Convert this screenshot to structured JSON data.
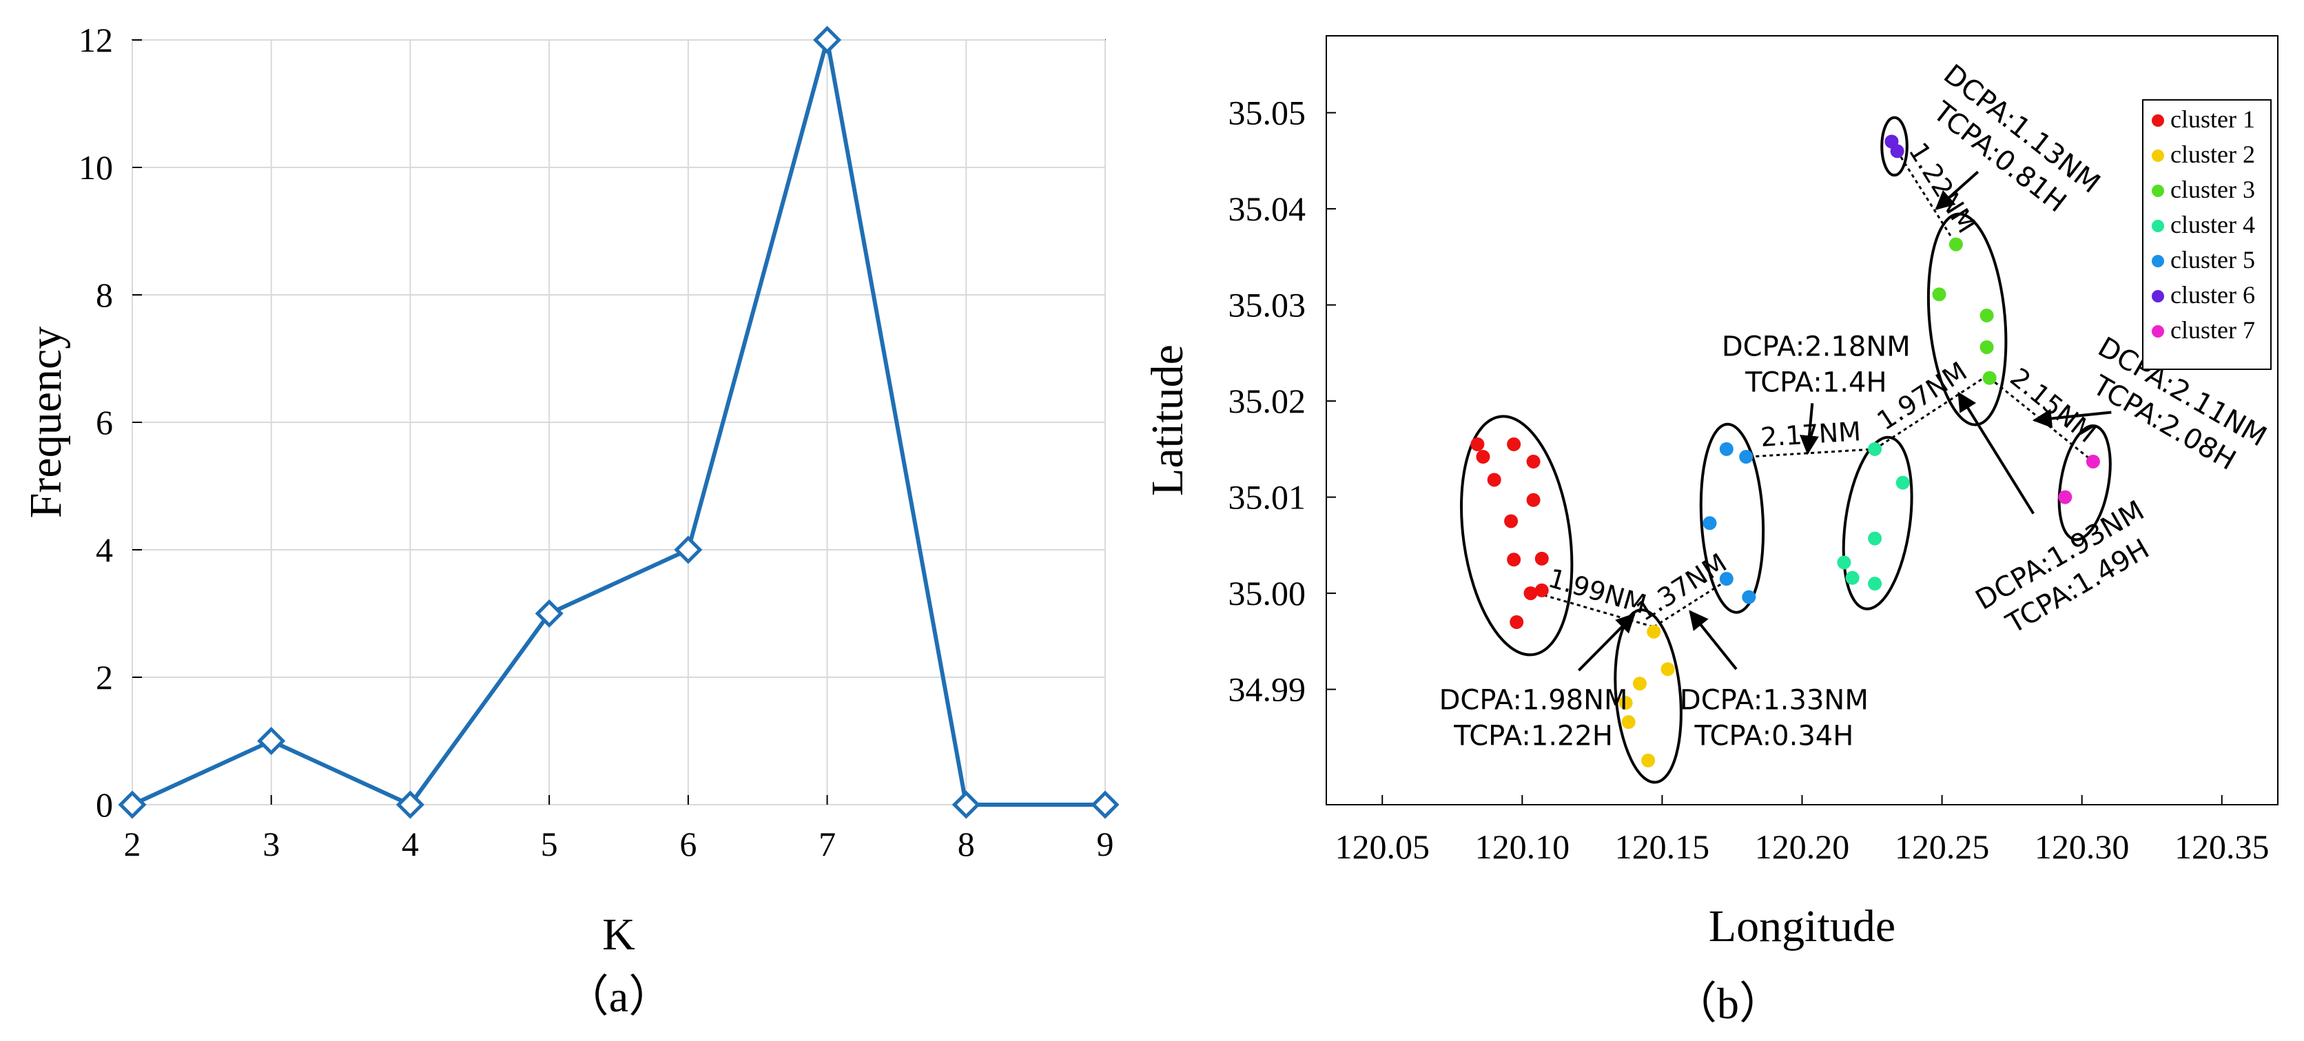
{
  "chart_data": [
    {
      "type": "line",
      "caption": "（a）",
      "xlabel": "K",
      "ylabel": "Frequency",
      "xlim": [
        2,
        9
      ],
      "ylim": [
        0,
        12
      ],
      "xticks": [
        2,
        3,
        4,
        5,
        6,
        7,
        8,
        9
      ],
      "yticks": [
        0,
        2,
        4,
        6,
        8,
        10,
        12
      ],
      "grid": true,
      "marker": "diamond",
      "color": "#1f6fb4",
      "x": [
        2,
        3,
        4,
        5,
        6,
        7,
        8,
        9
      ],
      "y": [
        0,
        1,
        0,
        3,
        4,
        12,
        0,
        0
      ]
    },
    {
      "type": "scatter",
      "caption": "（b）",
      "xlabel": "Longitude",
      "ylabel": "Latitude",
      "xlim": [
        120.03,
        120.37
      ],
      "ylim": [
        34.978,
        35.058
      ],
      "xticks": [
        "120.05",
        "120.10",
        "120.15",
        "120.20",
        "120.25",
        "120.30",
        "120.35"
      ],
      "yticks": [
        "34.99",
        "35.00",
        "35.01",
        "35.02",
        "35.03",
        "35.04",
        "35.05"
      ],
      "grid": false,
      "legend_position": "top-right",
      "series": [
        {
          "name": "cluster 1",
          "color": "#ee1111",
          "points": [
            [
              120.084,
              35.0155
            ],
            [
              120.086,
              35.0142
            ],
            [
              120.097,
              35.0155
            ],
            [
              120.104,
              35.0137
            ],
            [
              120.09,
              35.0118
            ],
            [
              120.104,
              35.0097
            ],
            [
              120.096,
              35.0075
            ],
            [
              120.097,
              35.0035
            ],
            [
              120.107,
              35.0036
            ],
            [
              120.103,
              35.0
            ],
            [
              120.107,
              35.0003
            ],
            [
              120.098,
              34.997
            ]
          ]
        },
        {
          "name": "cluster 2",
          "color": "#f5cc00",
          "points": [
            [
              120.147,
              34.996
            ],
            [
              120.152,
              34.9921
            ],
            [
              120.142,
              34.9906
            ],
            [
              120.137,
              34.9886
            ],
            [
              120.138,
              34.9866
            ],
            [
              120.145,
              34.9826
            ]
          ]
        },
        {
          "name": "cluster 3",
          "color": "#55dd22",
          "points": [
            [
              120.255,
              35.0363
            ],
            [
              120.249,
              35.0311
            ],
            [
              120.266,
              35.0289
            ],
            [
              120.266,
              35.0256
            ],
            [
              120.267,
              35.0224
            ]
          ]
        },
        {
          "name": "cluster 4",
          "color": "#22e899",
          "points": [
            [
              120.226,
              35.015
            ],
            [
              120.236,
              35.0115
            ],
            [
              120.226,
              35.0057
            ],
            [
              120.215,
              35.0032
            ],
            [
              120.218,
              35.0016
            ],
            [
              120.226,
              35.001
            ]
          ]
        },
        {
          "name": "cluster 5",
          "color": "#1a90e8",
          "points": [
            [
              120.173,
              35.015
            ],
            [
              120.18,
              35.0142
            ],
            [
              120.167,
              35.0073
            ],
            [
              120.173,
              35.0015
            ],
            [
              120.181,
              34.9996
            ]
          ]
        },
        {
          "name": "cluster 6",
          "color": "#6622dd",
          "points": [
            [
              120.232,
              35.047
            ],
            [
              120.234,
              35.046
            ]
          ]
        },
        {
          "name": "cluster 7",
          "color": "#ee22cc",
          "points": [
            [
              120.304,
              35.0137
            ],
            [
              120.294,
              35.01
            ]
          ]
        }
      ],
      "clusters": [
        {
          "cx": 120.098,
          "cy": 35.006,
          "rx": 0.019,
          "ry": 0.0125,
          "rot": -8
        },
        {
          "cx": 120.145,
          "cy": 34.9893,
          "rx": 0.0115,
          "ry": 0.009,
          "rot": -5
        },
        {
          "cx": 120.175,
          "cy": 35.0078,
          "rx": 0.011,
          "ry": 0.0098,
          "rot": -3
        },
        {
          "cx": 120.227,
          "cy": 35.0073,
          "rx": 0.0115,
          "ry": 0.009,
          "rot": 8
        },
        {
          "cx": 120.259,
          "cy": 35.0285,
          "rx": 0.0135,
          "ry": 0.011,
          "rot": -5
        },
        {
          "cx": 120.233,
          "cy": 35.0465,
          "rx": 0.0045,
          "ry": 0.003,
          "rot": 0
        },
        {
          "cx": 120.301,
          "cy": 35.0115,
          "rx": 0.0085,
          "ry": 0.006,
          "rot": 10
        }
      ],
      "distance_links": [
        {
          "from": [
            120.103,
            35.0002
          ],
          "to": [
            120.147,
            34.9965
          ],
          "label": "1.99NM"
        },
        {
          "from": [
            120.147,
            34.9965
          ],
          "to": [
            120.174,
            35.0015
          ],
          "label": "1.37NM"
        },
        {
          "from": [
            120.181,
            35.0142
          ],
          "to": [
            120.226,
            35.015
          ],
          "label": "2.17NM"
        },
        {
          "from": [
            120.226,
            35.015
          ],
          "to": [
            120.267,
            35.0228
          ],
          "label": "1.97NM"
        },
        {
          "from": [
            120.234,
            35.046
          ],
          "to": [
            120.255,
            35.0363
          ],
          "label": "1.22NM"
        },
        {
          "from": [
            120.267,
            35.0224
          ],
          "to": [
            120.304,
            35.0137
          ],
          "label": "2.15NM"
        }
      ],
      "annotations": [
        {
          "text": [
            "DCPA:1.98NM",
            "TCPA:1.22H"
          ],
          "at": [
            120.104,
            34.9872
          ],
          "arrow_to": [
            120.14,
            34.9978
          ]
        },
        {
          "text": [
            "DCPA:1.33NM",
            "TCPA:0.34H"
          ],
          "at": [
            120.19,
            34.9872
          ],
          "arrow_to": [
            120.16,
            34.9981
          ]
        },
        {
          "text": [
            "DCPA:2.18NM",
            "TCPA:1.4H"
          ],
          "at": [
            120.205,
            35.024
          ],
          "arrow_to": [
            120.202,
            35.0146
          ]
        },
        {
          "text": [
            "DCPA:1.13NM",
            "TCPA:0.81H"
          ],
          "at": [
            120.275,
            35.047
          ],
          "arrow_to": [
            120.248,
            35.04
          ],
          "rotate": 38
        },
        {
          "text": [
            "DCPA:2.11NM",
            "TCPA:2.08H"
          ],
          "at": [
            120.333,
            35.0195
          ],
          "arrow_to": [
            120.283,
            35.018
          ],
          "rotate": 30
        },
        {
          "text": [
            "DCPA:1.93NM",
            "TCPA:1.49H"
          ],
          "at": [
            120.295,
            35.0025
          ],
          "arrow_to": [
            120.256,
            35.0208
          ],
          "rotate": -30
        }
      ]
    }
  ]
}
